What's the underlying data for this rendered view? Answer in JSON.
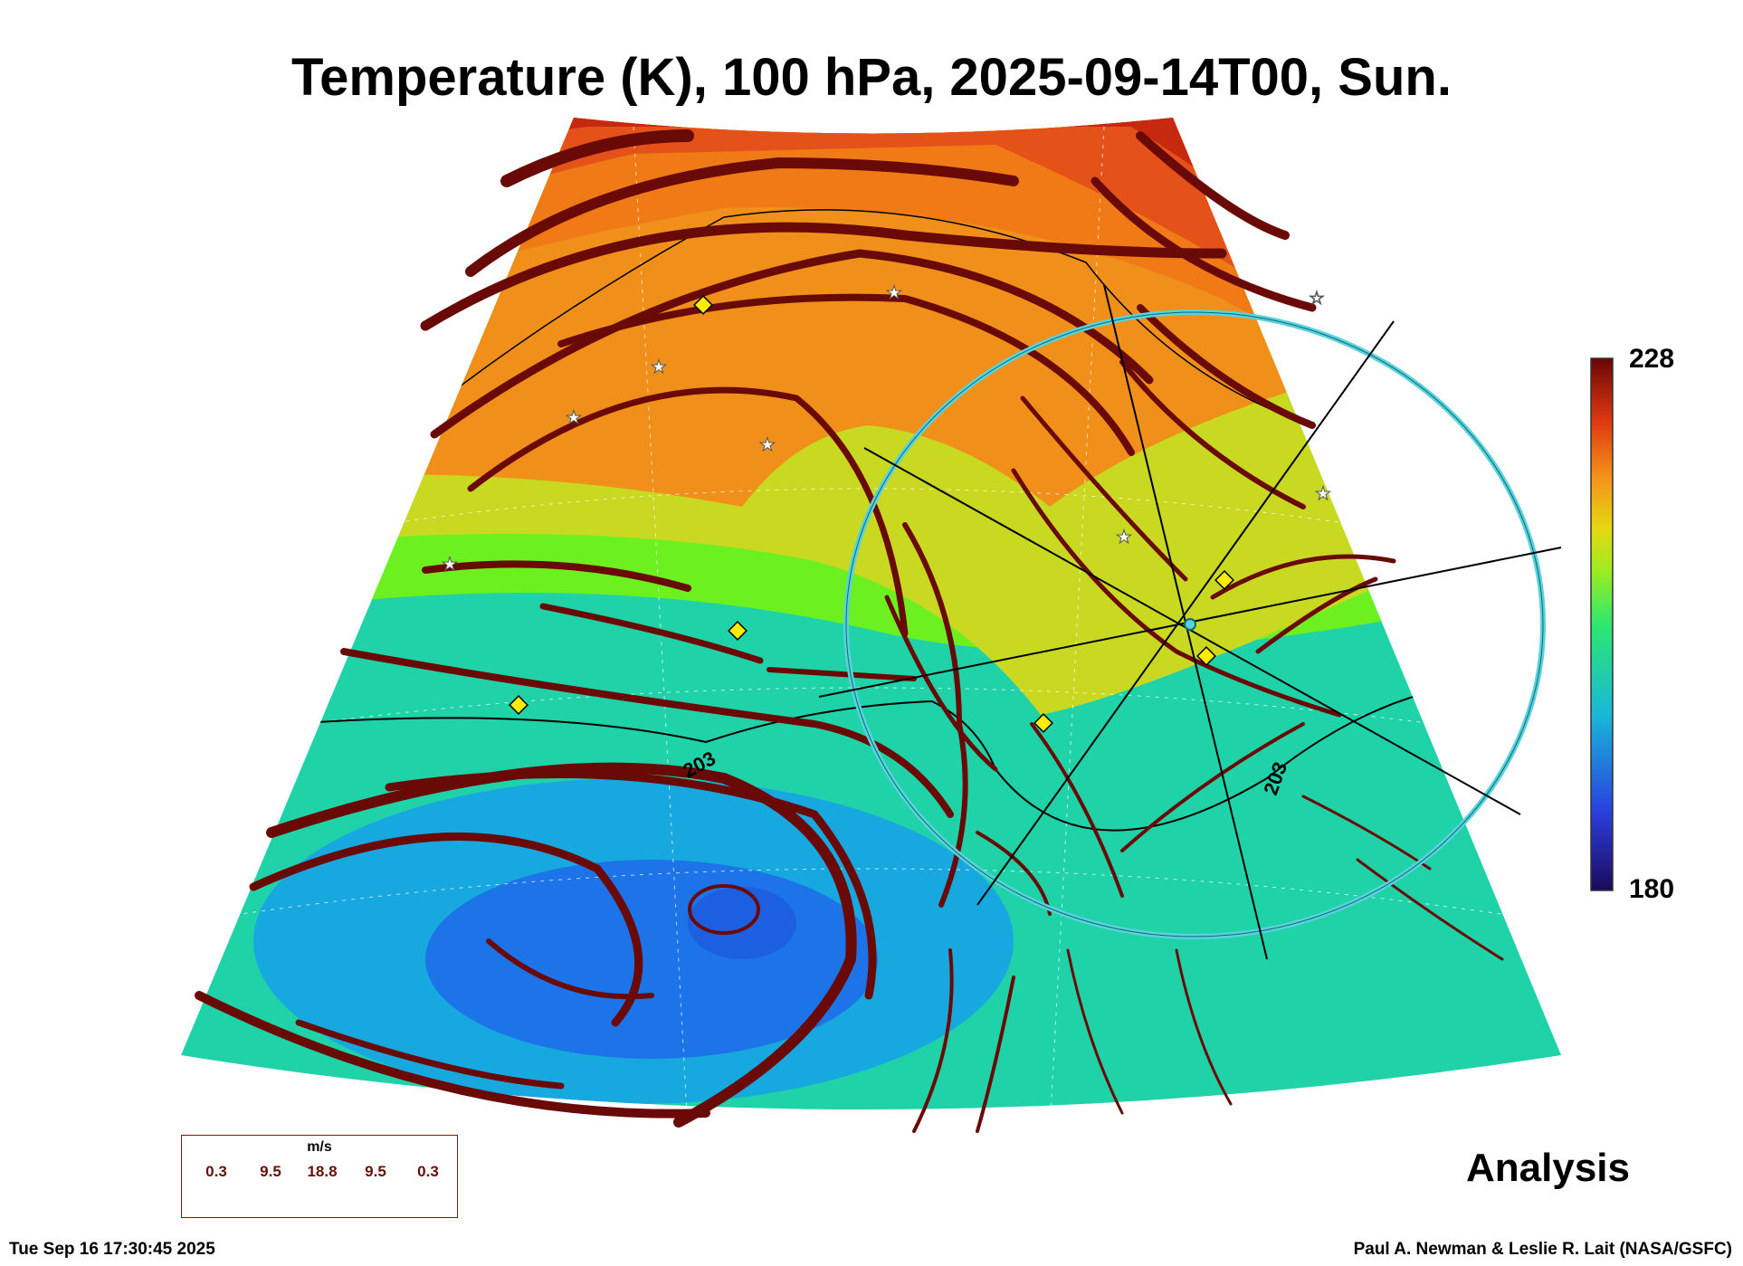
{
  "title": "Temperature (K), 100 hPa, 2025-09-14T00, Sun.",
  "colorbar": {
    "max_label": "228",
    "min_label": "180",
    "min": 180,
    "max": 228
  },
  "contour_labels": [
    "203",
    "203"
  ],
  "product_label": "Analysis",
  "legend": {
    "unit": "m/s",
    "values": [
      "0.3",
      "9.5",
      "18.8",
      "9.5",
      "0.3"
    ]
  },
  "timestamp": "Tue Sep 16 17:30:45 2025",
  "credit": "Paul A. Newman & Leslie R. Lait (NASA/GSFC)",
  "colors": {
    "hot": "#c62810",
    "warm": "#f0901a",
    "mid": "#c9d820",
    "green": "#6cf020",
    "cool": "#20d2a8",
    "cold": "#1c74e8",
    "streamline": "#6a0a06",
    "ring": "#5ad2dc"
  }
}
